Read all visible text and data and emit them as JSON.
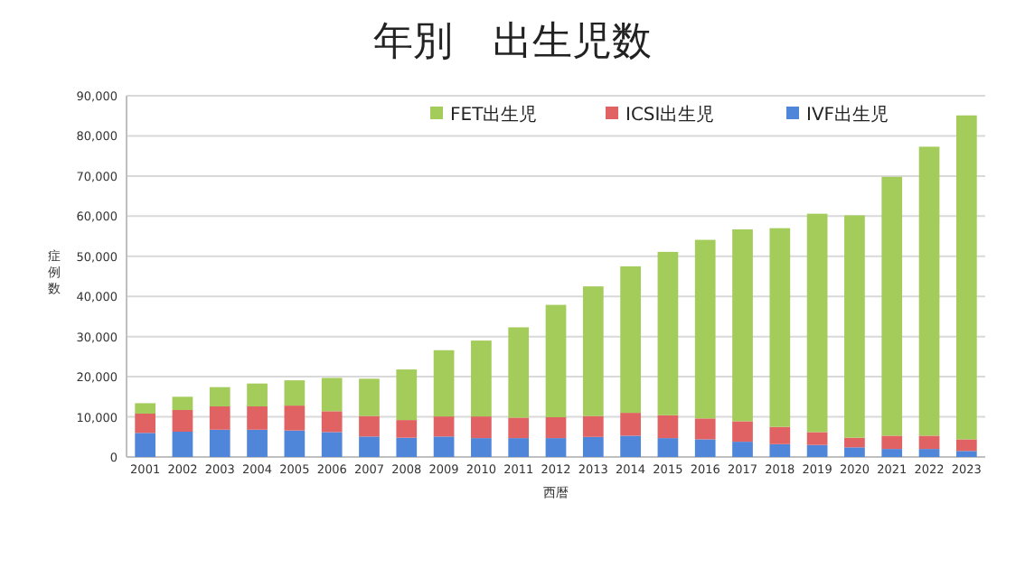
{
  "chart_data": {
    "type": "bar",
    "title": "年別　出生児数",
    "xlabel": "西暦",
    "ylabel": "症例数",
    "stacked": true,
    "grid": "y",
    "legend": "top",
    "categories": [
      "2001",
      "2002",
      "2003",
      "2004",
      "2005",
      "2006",
      "2007",
      "2008",
      "2009",
      "2010",
      "2011",
      "2012",
      "2013",
      "2014",
      "2015",
      "2016",
      "2017",
      "2018",
      "2019",
      "2020",
      "2021",
      "2022",
      "2023"
    ],
    "series": [
      {
        "name": "IVF出生児",
        "color": "#4f86d9",
        "values": [
          6000,
          6300,
          6800,
          6800,
          6600,
          6200,
          5100,
          4800,
          5100,
          4700,
          4700,
          4700,
          5000,
          5300,
          4700,
          4400,
          3800,
          3200,
          3000,
          2400,
          2000,
          2000,
          1500
        ]
      },
      {
        "name": "ICSI出生児",
        "color": "#e06262",
        "values": [
          4800,
          5400,
          5800,
          5800,
          6200,
          5200,
          5100,
          4400,
          5000,
          5400,
          5100,
          5200,
          5200,
          5700,
          5700,
          5200,
          5100,
          4300,
          3200,
          2400,
          3300,
          3300,
          2900
        ]
      },
      {
        "name": "FET出生児",
        "color": "#a3cc5a",
        "values": [
          2600,
          3300,
          4800,
          5700,
          6300,
          8300,
          9300,
          12600,
          16500,
          18900,
          22500,
          28000,
          32300,
          36500,
          40700,
          44500,
          47800,
          49500,
          54400,
          55400,
          64500,
          72000,
          80700
        ]
      }
    ],
    "ylim": [
      0,
      90000
    ],
    "yticks": [
      0,
      {
        "value": 10000,
        "label": "10,000"
      },
      {
        "value": 20000,
        "label": "20,000"
      },
      {
        "value": 30000,
        "label": "30,000"
      },
      {
        "value": 40000,
        "label": "40,000"
      },
      {
        "value": 50000,
        "label": "50,000"
      },
      {
        "value": 60000,
        "label": "60,000"
      },
      {
        "value": 70000,
        "label": "70,000"
      },
      {
        "value": 80000,
        "label": "80,000"
      },
      {
        "value": 90000,
        "label": "90,000"
      }
    ]
  }
}
